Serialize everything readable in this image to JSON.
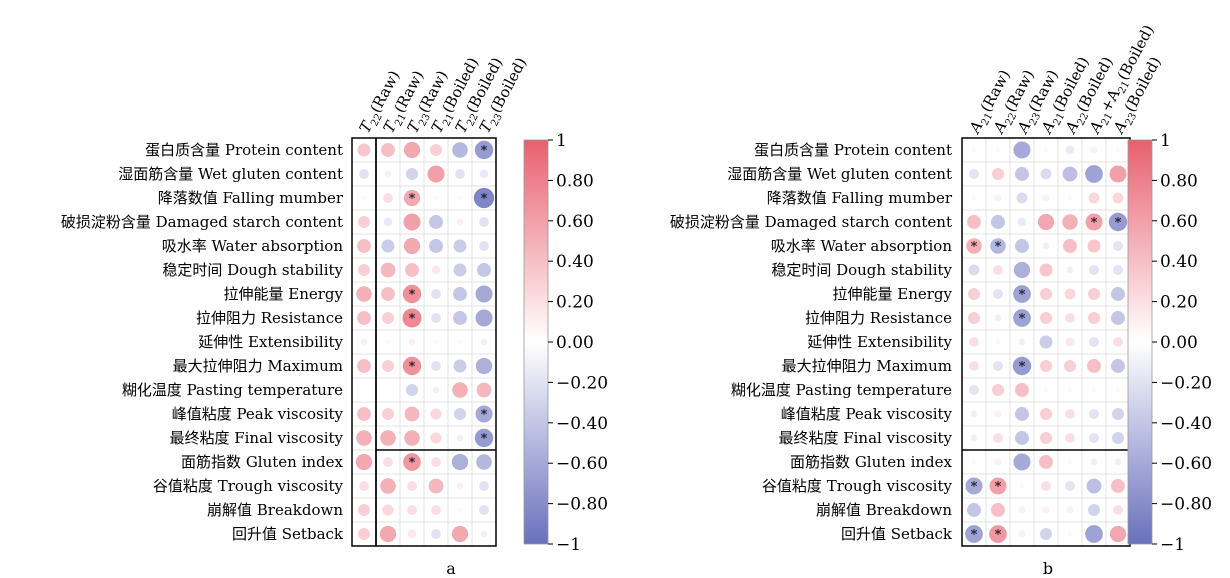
{
  "colors": {
    "positive": "#e8606f",
    "negative": "#6a70bd",
    "neutral": "#ffffff",
    "grid": "#e3e3e3",
    "border": "#000000"
  },
  "chart_data": [
    {
      "type": "heatmap",
      "panel_label": "a",
      "value_range": [
        -1,
        1
      ],
      "colorbar_ticks": [
        "1",
        "0.80",
        "0.60",
        "0.40",
        "0.20",
        "0.00",
        "−0.20",
        "−0.40",
        "−0.60",
        "−0.80",
        "−1"
      ],
      "rows": [
        "蛋白质含量 Protein content",
        "湿面筋含量 Wet gluten content",
        "降落数值 Falling mumber",
        "破损淀粉含量 Damaged starch content",
        "吸水率 Water absorption",
        "稳定时间 Dough stability",
        "拉伸能量 Energy",
        "拉伸阻力 Resistance",
        "延伸性 Extensibility",
        "最大拉伸阻力 Maximum",
        "糊化温度 Pasting temperature",
        "峰值粘度 Peak viscosity",
        "最终粘度 Final viscosity",
        "面筋指数 Gluten index",
        "谷值粘度 Trough viscosity",
        "崩解值 Breakdown",
        "回升值 Setback"
      ],
      "columns": [
        {
          "main": "T",
          "sub": "22",
          "suffix": "(Raw)"
        },
        {
          "main": "T",
          "sub": "21",
          "suffix": "(Raw)"
        },
        {
          "main": "T",
          "sub": "23",
          "suffix": "(Raw)"
        },
        {
          "main": "T",
          "sub": "21",
          "suffix": "(Boiled)"
        },
        {
          "main": "T",
          "sub": "22",
          "suffix": "(Boiled)"
        },
        {
          "main": "T",
          "sub": "23",
          "suffix": "(Boiled)"
        }
      ],
      "values": [
        [
          0.35,
          0.4,
          0.55,
          0.3,
          -0.5,
          -0.7
        ],
        [
          -0.2,
          0.1,
          -0.3,
          0.6,
          -0.2,
          -0.15
        ],
        [
          0.05,
          0.2,
          0.55,
          0.05,
          0.05,
          -0.85
        ],
        [
          0.3,
          -0.15,
          0.6,
          -0.4,
          0.1,
          -0.2
        ],
        [
          0.4,
          -0.35,
          0.55,
          -0.4,
          -0.35,
          -0.2
        ],
        [
          0.3,
          0.45,
          0.4,
          0.15,
          -0.35,
          -0.4
        ],
        [
          0.5,
          0.4,
          0.7,
          -0.2,
          -0.4,
          -0.6
        ],
        [
          0.4,
          0.3,
          0.75,
          -0.2,
          -0.4,
          -0.6
        ],
        [
          0.1,
          0.05,
          0.1,
          0.05,
          0.05,
          -0.1
        ],
        [
          0.4,
          0.3,
          0.7,
          -0.2,
          -0.35,
          -0.55
        ],
        [
          0.0,
          0.0,
          -0.3,
          -0.1,
          0.5,
          0.45
        ],
        [
          0.4,
          0.3,
          0.45,
          0.25,
          -0.3,
          -0.6
        ],
        [
          0.5,
          0.5,
          0.5,
          0.25,
          -0.1,
          -0.7
        ],
        [
          0.55,
          0.2,
          0.65,
          0.2,
          -0.55,
          -0.5
        ],
        [
          0.2,
          0.5,
          0.2,
          0.45,
          0.1,
          -0.2
        ],
        [
          0.3,
          0.25,
          0.2,
          0.2,
          0.05,
          -0.2
        ],
        [
          0.3,
          0.55,
          0.15,
          -0.2,
          0.55,
          -0.1
        ]
      ],
      "significance": [
        [
          false,
          false,
          false,
          false,
          false,
          true
        ],
        [
          false,
          false,
          false,
          false,
          false,
          false
        ],
        [
          false,
          false,
          true,
          false,
          false,
          true
        ],
        [
          false,
          false,
          false,
          false,
          false,
          false
        ],
        [
          false,
          false,
          false,
          false,
          false,
          false
        ],
        [
          false,
          false,
          false,
          false,
          false,
          false
        ],
        [
          false,
          false,
          true,
          false,
          false,
          false
        ],
        [
          false,
          false,
          true,
          false,
          false,
          false
        ],
        [
          false,
          false,
          false,
          false,
          false,
          false
        ],
        [
          false,
          false,
          true,
          false,
          false,
          false
        ],
        [
          false,
          false,
          false,
          false,
          false,
          false
        ],
        [
          false,
          false,
          false,
          false,
          false,
          true
        ],
        [
          false,
          false,
          false,
          false,
          false,
          true
        ],
        [
          false,
          false,
          true,
          false,
          false,
          false
        ],
        [
          false,
          false,
          false,
          false,
          false,
          false
        ],
        [
          false,
          false,
          false,
          false,
          false,
          false
        ],
        [
          false,
          false,
          false,
          false,
          false,
          false
        ]
      ]
    },
    {
      "type": "heatmap",
      "panel_label": "b",
      "value_range": [
        -1,
        1
      ],
      "colorbar_ticks": [
        "1",
        "0.80",
        "0.60",
        "0.40",
        "0.20",
        "0.00",
        "−0.20",
        "−0.40",
        "−0.60",
        "−0.80",
        "−1"
      ],
      "rows": [
        "蛋白质含量 Protein content",
        "湿面筋含量 Wet gluten content",
        "降落数值 Falling mumber",
        "破损淀粉含量 Damaged starch content",
        "吸水率 Water absorption",
        "稳定时间 Dough stability",
        "拉伸能量 Energy",
        "拉伸阻力 Resistance",
        "延伸性 Extensibility",
        "最大拉伸阻力 Maximum",
        "糊化温度 Pasting temperature",
        "峰值粘度 Peak viscosity",
        "最终粘度 Final viscosity",
        "面筋指数 Gluten index",
        "谷值粘度 Trough viscosity",
        "崩解值 Breakdown",
        "回升值 Setback"
      ],
      "columns": [
        {
          "main": "A",
          "sub": "21",
          "suffix": "(Raw)"
        },
        {
          "main": "A",
          "sub": "22",
          "suffix": "(Raw)"
        },
        {
          "main": "A",
          "sub": "23",
          "suffix": "(Raw)"
        },
        {
          "main": "A",
          "sub": "21",
          "suffix": "(Boiled)"
        },
        {
          "main": "A",
          "sub": "22",
          "suffix": "(Boiled)"
        },
        {
          "main": "A",
          "sub": "21",
          "suffix": "+A",
          "sub2": "21",
          "suffix2": "(Boiled)"
        },
        {
          "main": "A",
          "sub": "23",
          "suffix": "(Boiled)"
        }
      ],
      "values": [
        [
          0.05,
          0.05,
          -0.6,
          0.05,
          -0.15,
          0.1,
          0.05
        ],
        [
          -0.2,
          0.3,
          -0.4,
          -0.25,
          -0.45,
          -0.65,
          0.6
        ],
        [
          0.05,
          0.1,
          -0.25,
          0.1,
          0.05,
          0.25,
          0.25
        ],
        [
          0.4,
          -0.4,
          -0.15,
          0.55,
          0.5,
          0.6,
          -0.7
        ],
        [
          0.5,
          -0.5,
          -0.4,
          -0.1,
          0.4,
          0.35,
          -0.2
        ],
        [
          -0.25,
          0.2,
          -0.55,
          0.35,
          -0.1,
          -0.2,
          -0.2
        ],
        [
          0.3,
          -0.2,
          -0.65,
          0.3,
          0.25,
          0.3,
          -0.4
        ],
        [
          0.3,
          -0.1,
          -0.65,
          0.3,
          0.2,
          0.3,
          -0.4
        ],
        [
          0.2,
          -0.05,
          -0.1,
          -0.35,
          0.15,
          -0.2,
          0.2
        ],
        [
          0.2,
          -0.2,
          -0.7,
          0.3,
          0.3,
          0.4,
          -0.4
        ],
        [
          -0.2,
          0.3,
          0.4,
          0.05,
          0.05,
          0.05,
          0.05
        ],
        [
          -0.1,
          0.1,
          -0.4,
          0.3,
          0.2,
          -0.2,
          -0.3
        ],
        [
          -0.1,
          0.2,
          -0.4,
          0.3,
          0.2,
          -0.2,
          -0.3
        ],
        [
          0.05,
          0.1,
          -0.6,
          0.4,
          0.05,
          -0.1,
          -0.1
        ],
        [
          -0.6,
          0.6,
          0.05,
          0.2,
          -0.2,
          -0.45,
          0.4
        ],
        [
          -0.4,
          0.4,
          0.1,
          0.1,
          0.1,
          -0.3,
          0.2
        ],
        [
          -0.65,
          0.65,
          0.1,
          -0.3,
          0.05,
          -0.65,
          0.55
        ]
      ],
      "significance": [
        [
          false,
          false,
          false,
          false,
          false,
          false,
          false
        ],
        [
          false,
          false,
          false,
          false,
          false,
          false,
          false
        ],
        [
          false,
          false,
          false,
          false,
          false,
          false,
          false
        ],
        [
          false,
          false,
          false,
          false,
          false,
          true,
          true
        ],
        [
          true,
          true,
          false,
          false,
          false,
          false,
          false
        ],
        [
          false,
          false,
          false,
          false,
          false,
          false,
          false
        ],
        [
          false,
          false,
          true,
          false,
          false,
          false,
          false
        ],
        [
          false,
          false,
          true,
          false,
          false,
          false,
          false
        ],
        [
          false,
          false,
          false,
          false,
          false,
          false,
          false
        ],
        [
          false,
          false,
          true,
          false,
          false,
          false,
          false
        ],
        [
          false,
          false,
          false,
          false,
          false,
          false,
          false
        ],
        [
          false,
          false,
          false,
          false,
          false,
          false,
          false
        ],
        [
          false,
          false,
          false,
          false,
          false,
          false,
          false
        ],
        [
          false,
          false,
          false,
          false,
          false,
          false,
          false
        ],
        [
          true,
          true,
          false,
          false,
          false,
          false,
          false
        ],
        [
          false,
          false,
          false,
          false,
          false,
          false,
          false
        ],
        [
          true,
          true,
          false,
          false,
          false,
          false,
          false
        ]
      ]
    }
  ]
}
